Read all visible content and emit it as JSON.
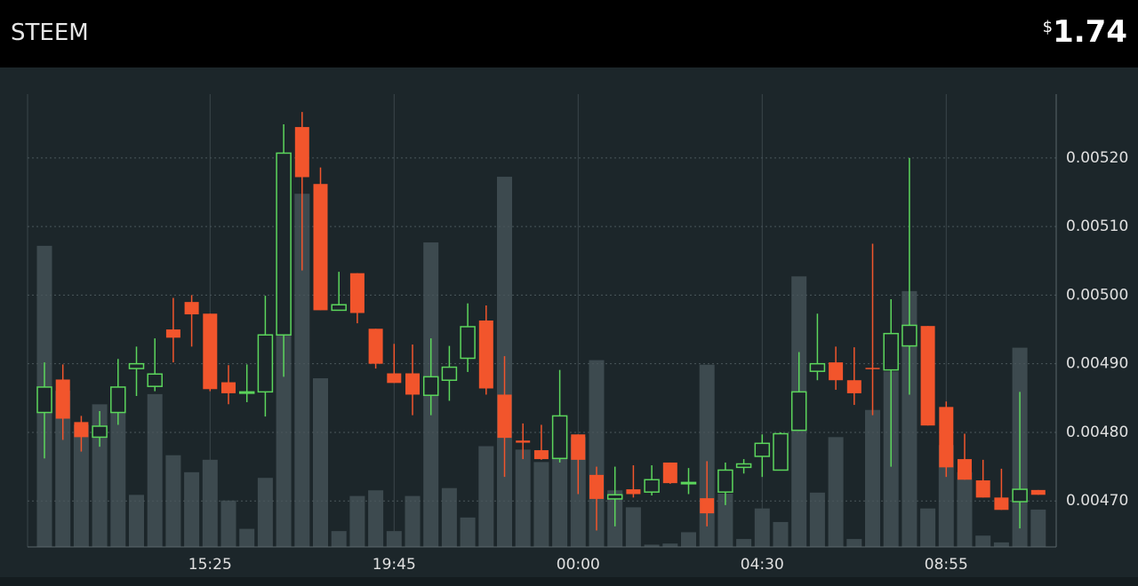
{
  "header": {
    "symbol": "STEEM",
    "currency": "$",
    "price": "1.74"
  },
  "chart_data": {
    "type": "candlestick",
    "categories": [
      null,
      null,
      null,
      null,
      null,
      null,
      null,
      null,
      null,
      "15:25",
      null,
      null,
      null,
      null,
      null,
      null,
      null,
      null,
      null,
      "19:45",
      null,
      null,
      null,
      null,
      null,
      null,
      null,
      null,
      null,
      "00:00",
      null,
      null,
      null,
      null,
      null,
      null,
      null,
      null,
      null,
      "04:30",
      null,
      null,
      null,
      null,
      null,
      null,
      null,
      null,
      null,
      "08:55",
      null,
      null,
      null,
      null,
      null
    ],
    "open": [
      0.004829,
      0.004877,
      0.004815,
      0.004793,
      0.004829,
      0.004893,
      0.004867,
      0.00495,
      0.00499,
      0.004973,
      0.004873,
      0.004857,
      0.004859,
      0.004942,
      0.005245,
      0.005162,
      0.004978,
      0.005032,
      0.004951,
      0.004886,
      0.004886,
      0.004854,
      0.004876,
      0.004908,
      0.004963,
      0.004855,
      0.004788,
      0.004774,
      0.004762,
      0.004797,
      0.004738,
      0.004703,
      0.004717,
      0.004713,
      0.004756,
      0.004726,
      0.004704,
      0.004713,
      0.004749,
      0.004765,
      0.004745,
      0.004803,
      0.004889,
      0.004902,
      0.004876,
      0.004894,
      0.004891,
      0.004926,
      0.004955,
      0.004837,
      0.004761,
      0.00473,
      0.004705,
      0.004699,
      0.004716
    ],
    "high": [
      0.004902,
      0.004899,
      0.004824,
      0.004831,
      0.004907,
      0.004925,
      0.004937,
      0.004996,
      0.005,
      0.004973,
      0.004898,
      0.004899,
      0.004999,
      0.005249,
      0.005267,
      0.005186,
      0.005034,
      0.005032,
      0.004951,
      0.004929,
      0.004928,
      0.004937,
      0.004926,
      0.004988,
      0.004985,
      0.004911,
      0.004813,
      0.004811,
      0.004891,
      0.004797,
      0.00475,
      0.00475,
      0.004752,
      0.004752,
      0.004756,
      0.004748,
      0.004758,
      0.004756,
      0.004761,
      0.004797,
      0.0048,
      0.004917,
      0.004973,
      0.004925,
      0.004924,
      0.005075,
      0.004994,
      0.0052,
      0.004955,
      0.004845,
      0.004798,
      0.00476,
      0.004747,
      0.004859,
      0.004716
    ],
    "low": [
      0.004762,
      0.004789,
      0.004772,
      0.004779,
      0.004811,
      0.004853,
      0.00486,
      0.004902,
      0.004925,
      0.00486,
      0.004841,
      0.004844,
      0.004823,
      0.004881,
      0.005036,
      0.004978,
      0.004978,
      0.004959,
      0.004893,
      0.004872,
      0.004825,
      0.004825,
      0.004846,
      0.004888,
      0.004855,
      0.004735,
      0.004761,
      0.00476,
      0.004756,
      0.00471,
      0.004657,
      0.004663,
      0.004705,
      0.004708,
      0.004725,
      0.00471,
      0.004663,
      0.004694,
      0.00474,
      0.004735,
      0.004745,
      0.004802,
      0.004876,
      0.004862,
      0.00484,
      0.004825,
      0.00475,
      0.004855,
      0.00481,
      0.004735,
      0.004731,
      0.004705,
      0.004687,
      0.00466,
      0.004709
    ],
    "close": [
      0.004866,
      0.00482,
      0.004793,
      0.004809,
      0.004866,
      0.0049,
      0.004885,
      0.004938,
      0.004972,
      0.004863,
      0.004857,
      0.004859,
      0.004942,
      0.005207,
      0.005172,
      0.004978,
      0.004986,
      0.004974,
      0.0049,
      0.004872,
      0.004855,
      0.004881,
      0.004895,
      0.004954,
      0.004864,
      0.004792,
      0.004785,
      0.004761,
      0.004824,
      0.00476,
      0.004703,
      0.004709,
      0.00471,
      0.004731,
      0.004726,
      0.004727,
      0.004682,
      0.004745,
      0.004754,
      0.004784,
      0.004798,
      0.004859,
      0.0049,
      0.004876,
      0.004857,
      0.004893,
      0.004944,
      0.004956,
      0.00481,
      0.004749,
      0.004731,
      0.004705,
      0.004687,
      0.004717,
      0.004709
    ],
    "volume": [
      266,
      138,
      108,
      126,
      120,
      46,
      135,
      81,
      66,
      77,
      41,
      16,
      61,
      333,
      312,
      149,
      14,
      45,
      50,
      14,
      45,
      269,
      52,
      26,
      89,
      327,
      86,
      75,
      101,
      97,
      165,
      50,
      35,
      2,
      3,
      13,
      161,
      47,
      7,
      34,
      22,
      239,
      48,
      97,
      7,
      121,
      155,
      226,
      34,
      90,
      66,
      10,
      4,
      176,
      33
    ],
    "volume_ylim": [
      0,
      400
    ],
    "up_color": "#5cd65c",
    "down_color": "#f2552c",
    "volume_color": "#3d4a4f",
    "ylim": [
      0.004633,
      0.005293
    ],
    "yticks": [
      {
        "value": 0.0047,
        "label": "0.00470"
      },
      {
        "value": 0.0048,
        "label": "0.00480"
      },
      {
        "value": 0.0049,
        "label": "0.00490"
      },
      {
        "value": 0.005,
        "label": "0.00500"
      },
      {
        "value": 0.0051,
        "label": "0.00510"
      },
      {
        "value": 0.0052,
        "label": "0.00520"
      }
    ],
    "grid": true
  }
}
